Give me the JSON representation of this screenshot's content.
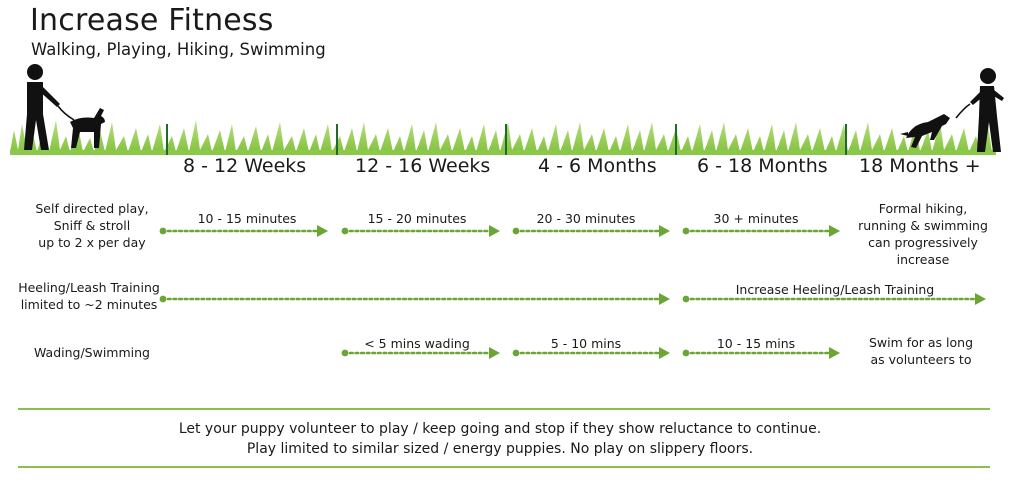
{
  "header": {
    "title": "Increase Fitness",
    "subtitle": "Walking, Playing, Hiking, Swimming"
  },
  "stages": [
    "8 - 12 Weeks",
    "12 - 16 Weeks",
    "4 - 6 Months",
    "6 - 18 Months",
    "18 Months +"
  ],
  "rows": {
    "play": {
      "left_label": [
        "Self directed play,",
        "Sniff & stroll",
        "up to 2 x per day"
      ],
      "segments": [
        "10 - 15 minutes",
        "15 - 20 minutes",
        "20 - 30 minutes",
        "30 + minutes"
      ],
      "right_label": [
        "Formal hiking,",
        "running & swimming",
        "can progressively",
        "increase"
      ]
    },
    "leash": {
      "left_label": [
        "Heeling/Leash Training",
        "limited to ~2 minutes"
      ],
      "right_segment": "Increase Heeling/Leash Training"
    },
    "swim": {
      "left_label": "Wading/Swimming",
      "segments": [
        "< 5 mins wading",
        "5 - 10 mins",
        "10 - 15 mins"
      ],
      "right_label": [
        "Swim for as long",
        "as volunteers to"
      ]
    }
  },
  "footer": {
    "line1": "Let your puppy volunteer to play / keep going and stop if they show reluctance to continue.",
    "line2": "Play limited to similar sized / energy puppies. No play on slippery floors."
  },
  "colors": {
    "accent": "#6aa535",
    "grass": "#9fd35f",
    "text": "#1a1a1a"
  },
  "icons": [
    "person-walking-dog-icon",
    "person-playing-dog-icon"
  ]
}
